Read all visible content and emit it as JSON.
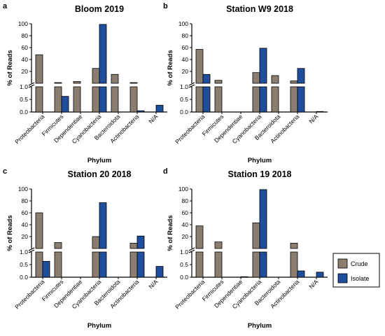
{
  "figure": {
    "legend": {
      "items": [
        {
          "label": "Crude",
          "color": "#8b7d70"
        },
        {
          "label": "Isolate",
          "color": "#1f4e9c"
        }
      ],
      "placement": "right-bottom"
    }
  },
  "chart_data": [
    {
      "panel": "a",
      "type": "bar",
      "title": "Bloom 2019",
      "xlabel": "Phylum",
      "ylabel": "% of Reads",
      "categories": [
        "Proteobacteria",
        "Firmicutes",
        "Dependentiae",
        "Cyanobacteria",
        "Bacteroidota",
        "Actinobacteria",
        "N/A"
      ],
      "series": [
        {
          "name": "Crude",
          "values": [
            48,
            1.2,
            3,
            25,
            15,
            1.2,
            0
          ]
        },
        {
          "name": "Isolate",
          "values": [
            0,
            0.62,
            0,
            99,
            0,
            0.05,
            0.27
          ]
        }
      ],
      "axis": {
        "broken": true,
        "lower_range": [
          0,
          1.0
        ],
        "upper_range": [
          1.0,
          100
        ],
        "lower_ticks": [
          "0.0",
          "0.5",
          "1.0"
        ],
        "upper_ticks": [
          "20",
          "40",
          "60",
          "80",
          "100"
        ]
      }
    },
    {
      "panel": "b",
      "type": "bar",
      "title": "Station W9 2018",
      "xlabel": "Phylum",
      "ylabel": "% of Reads",
      "categories": [
        "Proteobacteria",
        "Firmicutes",
        "Dependentiae",
        "Cyanobacteria",
        "Bacteroidota",
        "Actinobacteria",
        "N/A"
      ],
      "series": [
        {
          "name": "Crude",
          "values": [
            57,
            5,
            0,
            18,
            13,
            4,
            0
          ]
        },
        {
          "name": "Isolate",
          "values": [
            15,
            0,
            0,
            59,
            0,
            25,
            0.02
          ]
        }
      ],
      "axis": {
        "broken": true,
        "lower_range": [
          0,
          1.0
        ],
        "upper_range": [
          1.0,
          100
        ],
        "lower_ticks": [
          "0.0",
          "0.5",
          "1.0"
        ],
        "upper_ticks": [
          "20",
          "40",
          "60",
          "80",
          "100"
        ]
      }
    },
    {
      "panel": "c",
      "type": "bar",
      "title": "Station 20 2018",
      "xlabel": "Phylum",
      "ylabel": "% of Reads",
      "categories": [
        "Proteobacteria",
        "Firmicutes",
        "Dependentiae",
        "Cyanobacteria",
        "Bacteroidota",
        "Actinobacteria",
        "N/A"
      ],
      "series": [
        {
          "name": "Crude",
          "values": [
            60,
            10,
            0,
            20,
            0,
            9,
            0
          ]
        },
        {
          "name": "Isolate",
          "values": [
            0.63,
            0,
            0,
            77,
            0,
            21,
            0.43
          ]
        }
      ],
      "axis": {
        "broken": true,
        "lower_range": [
          0,
          1.0
        ],
        "upper_range": [
          1.0,
          100
        ],
        "lower_ticks": [
          "0.0",
          "0.5",
          "1.0"
        ],
        "upper_ticks": [
          "20",
          "40",
          "60",
          "80",
          "100"
        ]
      }
    },
    {
      "panel": "d",
      "type": "bar",
      "title": "Station 19 2018",
      "xlabel": "Phylum",
      "ylabel": "% of Reads",
      "categories": [
        "Proteobacteria",
        "Firmicutes",
        "Dependentiae",
        "Cyanobacteria",
        "Bacteroidota",
        "Actinobacteria",
        "N/A"
      ],
      "series": [
        {
          "name": "Crude",
          "values": [
            38,
            11,
            0,
            43,
            0,
            9,
            0
          ]
        },
        {
          "name": "Isolate",
          "values": [
            0,
            0,
            0.02,
            99,
            0,
            0.25,
            0.2
          ]
        }
      ],
      "axis": {
        "broken": true,
        "lower_range": [
          0,
          1.0
        ],
        "upper_range": [
          1.0,
          100
        ],
        "lower_ticks": [
          "0.0",
          "0.5",
          "1.0"
        ],
        "upper_ticks": [
          "20",
          "40",
          "60",
          "80",
          "100"
        ]
      }
    }
  ]
}
